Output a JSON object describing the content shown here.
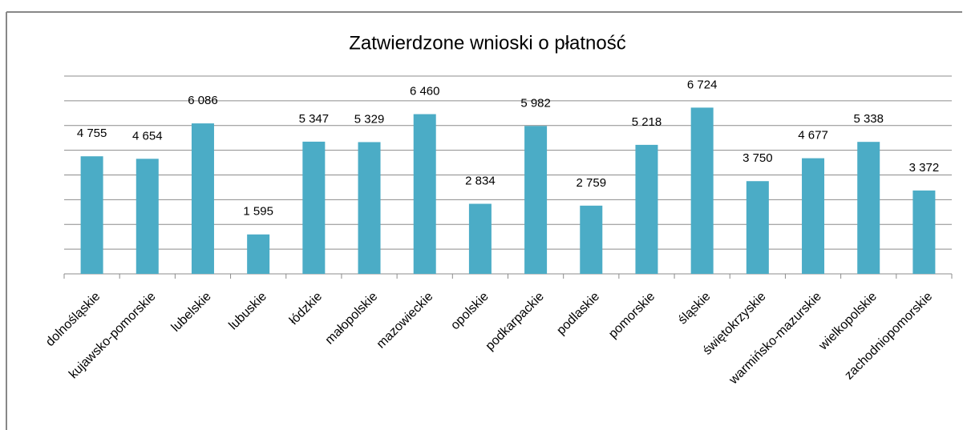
{
  "chart_data": {
    "type": "bar",
    "title": "Zatwierdzone wnioski o płatność",
    "categories": [
      "dolnośląskie",
      "kujawsko-pomorskie",
      "lubelskie",
      "lubuskie",
      "łódzkie",
      "małopolskie",
      "mazowieckie",
      "opolskie",
      "podkarpackie",
      "podlaskie",
      "pomorskie",
      "śląskie",
      "świętokrzyskie",
      "warmińsko-mazurskie",
      "wielkopolskie",
      "zachodniopomorskie"
    ],
    "values": [
      4755,
      4654,
      6086,
      1595,
      5347,
      5329,
      6460,
      2834,
      5982,
      2759,
      5218,
      6724,
      3750,
      4677,
      5338,
      3372
    ],
    "value_labels": [
      "4 755",
      "4 654",
      "6 086",
      "1 595",
      "5 347",
      "5 329",
      "6 460",
      "2 834",
      "5 982",
      "2 759",
      "5 218",
      "6 724",
      "3 750",
      "4 677",
      "5 338",
      "3 372"
    ],
    "color": "#4bacc6",
    "ylim": [
      0,
      8000
    ],
    "yticks": [
      0,
      1000,
      2000,
      3000,
      4000,
      5000,
      6000,
      7000,
      8000
    ],
    "grid": true
  }
}
